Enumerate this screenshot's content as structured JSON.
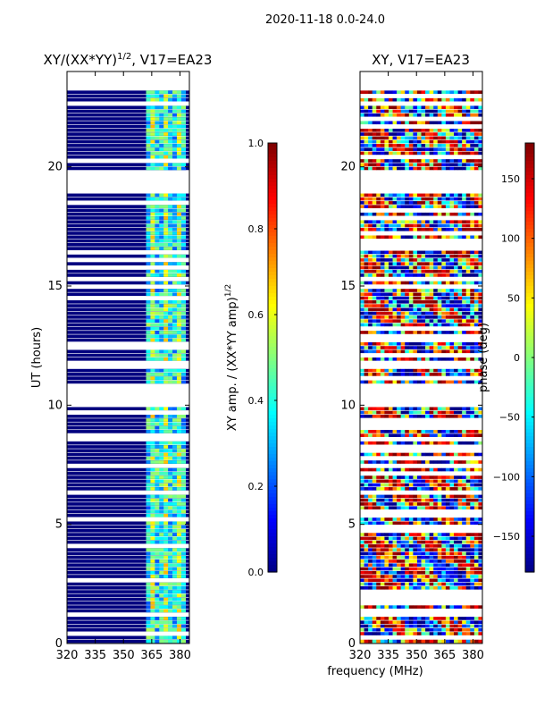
{
  "suptitle": "2020-11-18 0.0-24.0",
  "xlabel_shared": "frequency (MHz)",
  "colormap": [
    "#00007f",
    "#0000ff",
    "#0080ff",
    "#00ffff",
    "#80ff80",
    "#ffff00",
    "#ff8000",
    "#ff0000",
    "#7f0000"
  ],
  "colors": {
    "flagged": "#ffffff",
    "frame": "#000000"
  },
  "chart_data": [
    {
      "type": "heatmap",
      "title_main": "XY/(XX*YY)",
      "title_sup": "1/2",
      "title_tail": ", V17=EA23",
      "xlabel": "",
      "ylabel": "UT (hours)",
      "xlim": [
        320,
        385
      ],
      "ylim": [
        0,
        24
      ],
      "xticks": [
        320,
        335,
        350,
        365,
        380
      ],
      "yticks": [
        0,
        5,
        10,
        15,
        20
      ],
      "colorbar": {
        "label_main": "XY amp. / (XX*YY amp)",
        "label_sup": "1/2",
        "range": [
          0.0,
          1.0
        ],
        "ticks": [
          "0.0",
          "0.2",
          "0.4",
          "0.6",
          "0.8",
          "1.0"
        ],
        "tick_values": [
          0.0,
          0.2,
          0.4,
          0.6,
          0.8,
          1.0
        ]
      },
      "flagged_hours": [
        [
          10,
          10.9
        ],
        [
          11.55,
          11.85
        ],
        [
          18.9,
          19.9
        ],
        [
          23.25,
          24
        ]
      ],
      "high_band_mhz": [
        362,
        383
      ]
    },
    {
      "type": "heatmap",
      "title_main": "XY, V17=EA23",
      "xlabel": "frequency (MHz)",
      "ylabel": "",
      "xlim": [
        320,
        385
      ],
      "ylim": [
        0,
        24
      ],
      "xticks": [
        320,
        335,
        350,
        365,
        380
      ],
      "yticks": [
        0,
        5,
        10,
        15,
        20
      ],
      "colorbar": {
        "label_main": "phase (deg)",
        "range": [
          -180,
          180
        ],
        "ticks": [
          "−150",
          "−100",
          "−50",
          "0",
          "50",
          "100",
          "150"
        ],
        "tick_values": [
          -150,
          -100,
          -50,
          0,
          50,
          100,
          150
        ]
      },
      "flagged_hours": [
        [
          10,
          10.9
        ],
        [
          11.55,
          11.85
        ],
        [
          18.9,
          19.9
        ],
        [
          23.25,
          24
        ]
      ]
    }
  ]
}
